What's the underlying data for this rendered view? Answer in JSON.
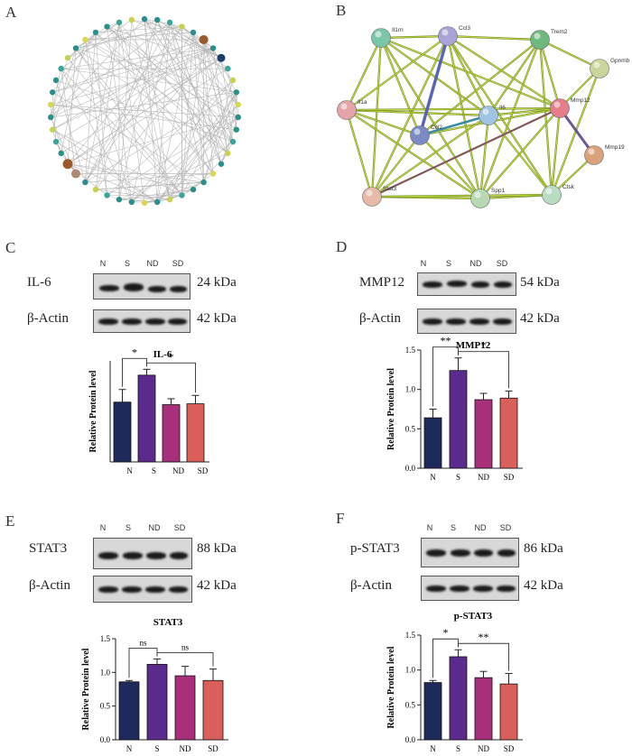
{
  "panels": {
    "A": {
      "letter": "A"
    },
    "B": {
      "letter": "B",
      "nodes": [
        {
          "label": "Il1rn",
          "color": "#79c7a8"
        },
        {
          "label": "Ccl3",
          "color": "#a9a4d6"
        },
        {
          "label": "Trem2",
          "color": "#6fb87e"
        },
        {
          "label": "Gpnmb",
          "color": "#c9d59a"
        },
        {
          "label": "Il1a",
          "color": "#e6a3a8"
        },
        {
          "label": "Mmp12",
          "color": "#e67d8a"
        },
        {
          "label": "Ccl2",
          "color": "#7a8ac4"
        },
        {
          "label": "Il6",
          "color": "#9fc3e2"
        },
        {
          "label": "Mmp19",
          "color": "#d9a27c"
        },
        {
          "label": "Stat3",
          "color": "#e6b9a8"
        },
        {
          "label": "Spp1",
          "color": "#b8d7b3"
        },
        {
          "label": "Ctsk",
          "color": "#b9dcc2"
        }
      ]
    },
    "C": {
      "letter": "C",
      "protein": "IL-6",
      "protein_kda": "24 kDa",
      "actin": "β-Actin",
      "actin_kda": "42 kDa"
    },
    "D": {
      "letter": "D",
      "protein": "MMP12",
      "protein_kda": "54 kDa",
      "actin": "β-Actin",
      "actin_kda": "42 kDa"
    },
    "E": {
      "letter": "E",
      "protein": "STAT3",
      "protein_kda": "88 kDa",
      "actin": "β-Actin",
      "actin_kda": "42 kDa"
    },
    "F": {
      "letter": "F",
      "protein": "p-STAT3",
      "protein_kda": "86 kDa",
      "actin": "β-Actin",
      "actin_kda": "42 kDa"
    }
  },
  "lanes": [
    "N",
    "S",
    "ND",
    "SD"
  ],
  "colors": {
    "N": "#1f2a5c",
    "S": "#5a2a8c",
    "ND": "#a8307a",
    "SD": "#d9605a"
  },
  "chart_data": [
    {
      "id": "C",
      "type": "bar",
      "title": "IL-6",
      "ylabel": "Relative Protein level",
      "categories": [
        "N",
        "S",
        "ND",
        "SD"
      ],
      "values": [
        0.71,
        1.03,
        0.68,
        0.69
      ],
      "errors": [
        0.15,
        0.07,
        0.07,
        0.1
      ],
      "ylim": [
        0,
        1.2
      ],
      "yticks": [],
      "significance": [
        {
          "from": 0,
          "to": 1,
          "label": "*"
        },
        {
          "from": 1,
          "to": 3,
          "label": "*"
        }
      ]
    },
    {
      "id": "D",
      "type": "bar",
      "title": "MMP12",
      "ylabel": "Relative Protein level",
      "categories": [
        "N",
        "S",
        "ND",
        "SD"
      ],
      "values": [
        0.64,
        1.24,
        0.87,
        0.89
      ],
      "errors": [
        0.11,
        0.16,
        0.08,
        0.09
      ],
      "ylim": [
        0,
        1.5
      ],
      "yticks": [
        "0.0",
        "0.5",
        "1.0",
        "1.5"
      ],
      "significance": [
        {
          "from": 0,
          "to": 1,
          "label": "**"
        },
        {
          "from": 1,
          "to": 3,
          "label": "*"
        }
      ]
    },
    {
      "id": "E",
      "type": "bar",
      "title": "STAT3",
      "ylabel": "Relative Protein level",
      "categories": [
        "N",
        "S",
        "ND",
        "SD"
      ],
      "values": [
        0.86,
        1.12,
        0.95,
        0.88
      ],
      "errors": [
        0.02,
        0.08,
        0.14,
        0.17
      ],
      "ylim": [
        0,
        1.5
      ],
      "yticks": [
        "0.0",
        "0.5",
        "1.0",
        "1.5"
      ],
      "significance": [
        {
          "from": 0,
          "to": 1,
          "label": "ns"
        },
        {
          "from": 1,
          "to": 3,
          "label": "ns"
        }
      ]
    },
    {
      "id": "F",
      "type": "bar",
      "title": "p-STAT3",
      "ylabel": "Relative Protein level",
      "categories": [
        "N",
        "S",
        "ND",
        "SD"
      ],
      "values": [
        0.82,
        1.19,
        0.89,
        0.8
      ],
      "errors": [
        0.03,
        0.1,
        0.09,
        0.15
      ],
      "ylim": [
        0,
        1.5
      ],
      "yticks": [
        "0.0",
        "0.5",
        "1.0",
        "1.5"
      ],
      "significance": [
        {
          "from": 0,
          "to": 1,
          "label": "*"
        },
        {
          "from": 1,
          "to": 3,
          "label": "**"
        }
      ]
    }
  ]
}
